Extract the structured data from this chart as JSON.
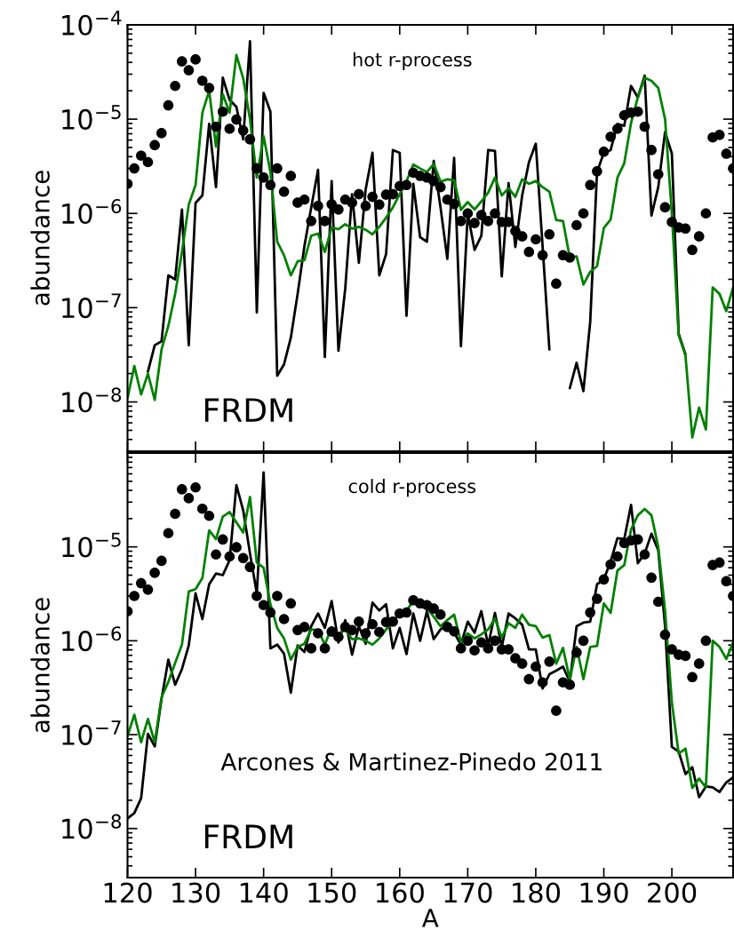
{
  "chart_data": [
    {
      "type": "line",
      "annotations": [
        "hot r-process",
        "FRDM"
      ],
      "ylabel": "abundance",
      "log": true,
      "tick_labels": "y",
      "xlim": [
        120,
        209
      ],
      "xticks": [
        120,
        130,
        140,
        150,
        160,
        170,
        180,
        190,
        200
      ],
      "ylim": [
        3e-09,
        0.0001
      ],
      "yticks": [
        {
          "value": 1e-08,
          "label": "10$^{−8}$"
        },
        {
          "value": 1e-07,
          "label": "10$^{−7}$"
        },
        {
          "value": 1e-06,
          "label": "10$^{−6}$"
        },
        {
          "value": 1e-05,
          "label": "10$^{−5}$"
        },
        {
          "value": 0.0001,
          "label": "10$^{−4}$"
        }
      ],
      "x": [
        120,
        121,
        122,
        123,
        124,
        125,
        126,
        127,
        128,
        129,
        130,
        131,
        132,
        133,
        134,
        135,
        136,
        137,
        138,
        139,
        140,
        141,
        142,
        143,
        144,
        145,
        146,
        147,
        148,
        149,
        150,
        151,
        152,
        153,
        154,
        155,
        156,
        157,
        158,
        159,
        160,
        161,
        162,
        163,
        164,
        165,
        166,
        167,
        168,
        169,
        170,
        171,
        172,
        173,
        174,
        175,
        176,
        177,
        178,
        179,
        180,
        181,
        182,
        183,
        184,
        185,
        186,
        187,
        188,
        189,
        190,
        191,
        192,
        193,
        194,
        195,
        196,
        197,
        198,
        199,
        200,
        201,
        202,
        203,
        204,
        205,
        206,
        207,
        208,
        209
      ],
      "series": [
        {
          "type": "line",
          "color": "#000000",
          "values": [
            null,
            null,
            null,
            2.1e-08,
            4e-08,
            4.4e-08,
            2.2e-07,
            2e-07,
            1.1e-06,
            4e-08,
            1.29e-06,
            1.55e-06,
            8.9e-06,
            1.9e-06,
            2.75e-05,
            1.6e-05,
            1.35e-05,
            6.1e-06,
            6.7e-05,
            8.9e-08,
            1.9e-05,
            1.2e-05,
            1.9e-08,
            2.5e-08,
            4.8e-08,
            1.4e-07,
            4.5e-07,
            1.16e-06,
            2.9e-06,
            3e-08,
            2.2e-06,
            3.5e-08,
            1.6e-07,
            1.6e-06,
            3e-07,
            1.8e-06,
            4.4e-06,
            2.2e-07,
            3.7e-07,
            4.7e-06,
            4.4e-06,
            8.2e-08,
            2.06e-06,
            5.6e-07,
            5e-07,
            3.6e-06,
            1.16e-06,
            3.3e-07,
            3.9e-06,
            3.9e-08,
            1e-06,
            4.1e-07,
            5.8e-07,
            4.7e-06,
            4.6e-06,
            2.15e-07,
            2.1e-06,
            4.4e-07,
            1.55e-06,
            3.5e-06,
            5.5e-06,
            4.5e-07,
            3.6e-08,
            null,
            null,
            1.4e-08,
            2.6e-08,
            1.3e-08,
            7.1e-08,
            2.75e-06,
            4.4e-06,
            4.7e-06,
            8.9e-06,
            8.5e-06,
            2.25e-05,
            1.7e-05,
            2.9e-05,
            9.5e-07,
            1.9e-06,
            7.3e-06,
            4.3e-06,
            5.3e-08,
            3.2e-08,
            null,
            null,
            null,
            null,
            null,
            null,
            null
          ]
        },
        {
          "type": "line",
          "color": "#008000",
          "values": [
            1.1e-08,
            2.4e-08,
            1.2e-08,
            2e-08,
            1.05e-08,
            3.6e-08,
            6.4e-08,
            1.4e-07,
            3.9e-07,
            1.24e-06,
            2e-06,
            1.17e-05,
            2e-05,
            5.1e-06,
            1.84e-05,
            1.17e-05,
            4.8e-05,
            2.7e-05,
            1e-05,
            2.4e-06,
            6.6e-06,
            2.75e-06,
            5e-07,
            3.6e-07,
            2.2e-07,
            3.1e-07,
            3.2e-07,
            5.8e-07,
            6.1e-07,
            3.9e-07,
            7.1e-07,
            6.8e-07,
            7.7e-07,
            6.9e-07,
            7.2e-07,
            6.7e-07,
            6e-07,
            7.2e-07,
            9e-07,
            1.16e-06,
            1.6e-06,
            2.2e-06,
            3.3e-06,
            3e-06,
            2.75e-06,
            3.35e-06,
            2.17e-06,
            2.3e-06,
            2.25e-06,
            1.09e-06,
            1.32e-06,
            1.1e-06,
            1.34e-06,
            1.66e-06,
            2.4e-06,
            1.55e-06,
            1.85e-06,
            1.5e-06,
            2.3e-06,
            2.06e-06,
            2.2e-06,
            1.9e-06,
            1.7e-06,
            8.5e-07,
            8.3e-07,
            3.4e-07,
            3.5e-07,
            1.76e-07,
            2.4e-07,
            2.75e-07,
            7e-07,
            8.6e-07,
            2.4e-06,
            3.4e-06,
            9.1e-06,
            1.7e-05,
            2.75e-05,
            2.55e-05,
            2.14e-05,
            1e-05,
            1e-06,
            5.1e-08,
            3.1e-08,
            4.2e-09,
            8.7e-09,
            5.1e-09,
            1.64e-07,
            1.4e-07,
            9.2e-08,
            1.64e-07
          ]
        },
        {
          "type": "scatter",
          "color": "#000000",
          "marker": "circle",
          "values": [
            2.06e-06,
            3e-06,
            4.1e-06,
            3.5e-06,
            5.3e-06,
            7.1e-06,
            1.4e-05,
            2.25e-05,
            4.1e-05,
            3.3e-05,
            4.3e-05,
            2.55e-05,
            2.14e-05,
            8.3e-06,
            1.2e-05,
            7.9e-06,
            9.9e-06,
            7.6e-06,
            6.1e-06,
            3e-06,
            2.4e-06,
            2e-06,
            3e-06,
            1.7e-06,
            2.5e-06,
            1.3e-06,
            1.4e-06,
            8.3e-07,
            1.2e-06,
            8.3e-07,
            1.25e-06,
            1.1e-06,
            1.4e-06,
            1.3e-06,
            1.6e-06,
            1.2e-06,
            1.5e-06,
            1.24e-06,
            1.58e-06,
            1.6e-06,
            1.95e-06,
            2e-06,
            2.7e-06,
            2.5e-06,
            2.4e-06,
            2.2e-06,
            1.9e-06,
            1.4e-06,
            1.26e-06,
            8.3e-07,
            1e-06,
            7.9e-07,
            9.6e-07,
            8.3e-07,
            1e-06,
            8.1e-07,
            8.1e-07,
            6.5e-07,
            5.7e-07,
            3.9e-07,
            5.3e-07,
            3.6e-07,
            6e-07,
            1.8e-07,
            3.6e-07,
            3.4e-07,
            7.5e-07,
            1e-06,
            2e-06,
            2.8e-06,
            4.5e-06,
            6.5e-06,
            7.9e-06,
            1.1e-05,
            1.17e-05,
            1.2e-05,
            8.3e-06,
            4.7e-06,
            2.6e-06,
            1.16e-06,
            8.1e-07,
            7.1e-07,
            6.9e-07,
            4.1e-07,
            5.7e-07,
            1e-06,
            6.4e-06,
            6.8e-06,
            4.3e-06,
            3e-06
          ]
        }
      ]
    },
    {
      "type": "line",
      "annotations": [
        "cold r-process",
        "Arcones & Martinez-Pinedo 2011",
        "FRDM"
      ],
      "ylabel": "abundance",
      "xlabel": "A",
      "log": true,
      "xlim": [
        120,
        209
      ],
      "xticks": [
        120,
        130,
        140,
        150,
        160,
        170,
        180,
        190,
        200
      ],
      "ylim": [
        3e-09,
        0.0001
      ],
      "yticks": [
        {
          "value": 1e-08,
          "label": "10$^{−8}$"
        },
        {
          "value": 1e-07,
          "label": "10$^{−7}$"
        },
        {
          "value": 1e-06,
          "label": "10$^{−6}$"
        },
        {
          "value": 1e-05,
          "label": "10$^{−5}$"
        },
        {
          "value": 0.0001,
          "label": null
        }
      ],
      "x": [
        120,
        121,
        122,
        123,
        124,
        125,
        126,
        127,
        128,
        129,
        130,
        131,
        132,
        133,
        134,
        135,
        136,
        137,
        138,
        139,
        140,
        141,
        142,
        143,
        144,
        145,
        146,
        147,
        148,
        149,
        150,
        151,
        152,
        153,
        154,
        155,
        156,
        157,
        158,
        159,
        160,
        161,
        162,
        163,
        164,
        165,
        166,
        167,
        168,
        169,
        170,
        171,
        172,
        173,
        174,
        175,
        176,
        177,
        178,
        179,
        180,
        181,
        182,
        183,
        184,
        185,
        186,
        187,
        188,
        189,
        190,
        191,
        192,
        193,
        194,
        195,
        196,
        197,
        198,
        199,
        200,
        201,
        202,
        203,
        204,
        205,
        206,
        207,
        208,
        209
      ],
      "series": [
        {
          "type": "line",
          "color": "#000000",
          "values": [
            1.28e-08,
            1.46e-08,
            2.1e-08,
            1.02e-07,
            7.5e-08,
            2.4e-07,
            6.3e-07,
            3.4e-07,
            5e-07,
            8.9e-07,
            3.2e-06,
            1.7e-06,
            4e-06,
            5.2e-06,
            5e-06,
            7.2e-06,
            4.55e-05,
            2.45e-05,
            8.5e-06,
            3.2e-06,
            6.2e-05,
            8.3e-07,
            9.1e-07,
            7.3e-07,
            2.8e-07,
            8.9e-07,
            7.6e-07,
            1.43e-06,
            1.95e-06,
            1.37e-06,
            2.65e-06,
            9.6e-07,
            1.66e-06,
            7.1e-07,
            1.43e-06,
            9.3e-07,
            2.55e-06,
            2.1e-06,
            2.45e-06,
            8.3e-07,
            1.37e-06,
            7.2e-07,
            1.95e-06,
            1e-06,
            2.07e-06,
            1.04e-06,
            1.32e-06,
            1.48e-06,
            1.22e-06,
            9.1e-07,
            1.6e-06,
            1.22e-06,
            2.07e-06,
            8.9e-07,
            1.98e-06,
            8.6e-07,
            1.95e-06,
            1.73e-06,
            1.48e-06,
            8.1e-07,
            8.1e-07,
            3.1e-07,
            4.4e-07,
            4.8e-07,
            5.3e-07,
            3.65e-07,
            1.43e-06,
            1.56e-06,
            1.6e-06,
            4e-06,
            4.5e-06,
            7e-06,
            1.24e-05,
            1.21e-05,
            2.8e-05,
            6.7e-06,
            8.5e-06,
            1.38e-05,
            9.2e-06,
            1.43e-06,
            7.4e-08,
            6.6e-08,
            3.8e-08,
            4.5e-08,
            2.16e-08,
            2.8e-08,
            2.75e-08,
            2.45e-08,
            3.1e-08,
            3.5e-08
          ]
        },
        {
          "type": "line",
          "color": "#008000",
          "values": [
            9.7e-08,
            1.63e-07,
            8.3e-08,
            1.47e-07,
            8.3e-08,
            2.5e-07,
            3.65e-07,
            5.8e-07,
            9.1e-07,
            3.35e-06,
            3.55e-06,
            4.65e-06,
            1.5e-05,
            1.21e-05,
            2.1e-05,
            2.35e-05,
            1.83e-05,
            1.42e-05,
            3.4e-05,
            6.8e-06,
            6e-06,
            2.45e-06,
            1.37e-06,
            1.06e-06,
            6.3e-07,
            8.6e-07,
            9.3e-07,
            1.32e-06,
            1.3e-06,
            9.1e-07,
            1.4e-06,
            1.17e-06,
            1.32e-06,
            1.04e-06,
            1.06e-06,
            1e-06,
            9.1e-07,
            1.06e-06,
            1.32e-06,
            1.6e-06,
            1.95e-06,
            2.1e-06,
            2.65e-06,
            2.3e-06,
            2.25e-06,
            1.8e-06,
            1.43e-06,
            1.66e-06,
            1.9e-06,
            9.6e-07,
            1.2e-06,
            1.06e-06,
            1.17e-06,
            1.32e-06,
            1.73e-06,
            1.08e-06,
            1.54e-06,
            1.37e-06,
            1.9e-06,
            1.48e-06,
            1.43e-06,
            1.08e-06,
            1.15e-06,
            5.7e-07,
            8.4e-07,
            3.85e-07,
            8.6e-07,
            3.9e-07,
            8.6e-07,
            8.8e-07,
            2.5e-06,
            1.98e-06,
            5.6e-06,
            6.4e-06,
            1.53e-05,
            2.17e-05,
            2.54e-05,
            2.17e-05,
            1e-05,
            2.1e-06,
            2.2e-07,
            6.3e-08,
            7.1e-08,
            2.7e-08,
            3.4e-08,
            2.75e-08,
            1e-06,
            8.6e-07,
            6.4e-07,
            9.6e-07
          ]
        },
        {
          "type": "scatter",
          "color": "#000000",
          "marker": "circle",
          "values": [
            2.06e-06,
            3e-06,
            4.1e-06,
            3.5e-06,
            5.3e-06,
            7.1e-06,
            1.4e-05,
            2.25e-05,
            4.1e-05,
            3.3e-05,
            4.3e-05,
            2.55e-05,
            2.14e-05,
            8.3e-06,
            1.2e-05,
            7.9e-06,
            9.9e-06,
            7.6e-06,
            6.1e-06,
            3e-06,
            2.4e-06,
            2e-06,
            3e-06,
            1.7e-06,
            2.5e-06,
            1.3e-06,
            1.4e-06,
            8.3e-07,
            1.2e-06,
            8.3e-07,
            1.25e-06,
            1.1e-06,
            1.4e-06,
            1.3e-06,
            1.6e-06,
            1.2e-06,
            1.5e-06,
            1.24e-06,
            1.58e-06,
            1.6e-06,
            1.95e-06,
            2e-06,
            2.7e-06,
            2.5e-06,
            2.4e-06,
            2.2e-06,
            1.9e-06,
            1.4e-06,
            1.26e-06,
            8.3e-07,
            1e-06,
            7.9e-07,
            9.6e-07,
            8.3e-07,
            1e-06,
            8.1e-07,
            8.1e-07,
            6.5e-07,
            5.7e-07,
            3.9e-07,
            5.3e-07,
            3.6e-07,
            6e-07,
            1.8e-07,
            3.6e-07,
            3.4e-07,
            7.5e-07,
            1e-06,
            2e-06,
            2.8e-06,
            4.5e-06,
            6.5e-06,
            7.9e-06,
            1.1e-05,
            1.17e-05,
            1.2e-05,
            8.3e-06,
            4.7e-06,
            2.6e-06,
            1.16e-06,
            8.1e-07,
            7.1e-07,
            6.9e-07,
            4.1e-07,
            5.7e-07,
            1e-06,
            6.4e-06,
            6.8e-06,
            4.3e-06,
            3e-06
          ]
        }
      ]
    }
  ]
}
